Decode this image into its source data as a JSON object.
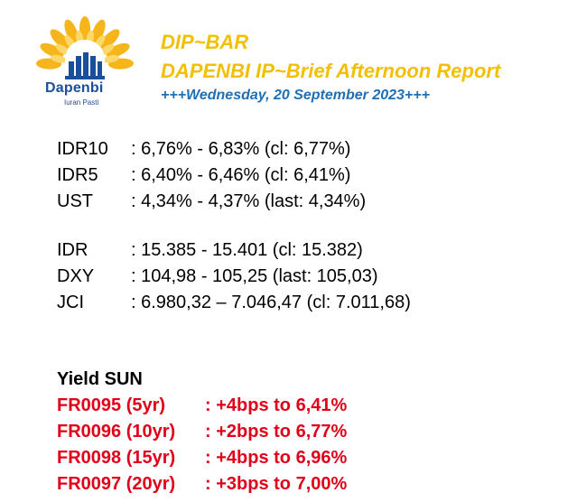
{
  "header": {
    "logo": {
      "brand": "Dapenbi",
      "tagline": "Iuran Pasti",
      "icon": "sunburst-building-logo"
    },
    "title_line1": "DIP~BAR",
    "title_line2": "DAPENBI IP~Brief Afternoon Report",
    "date_line": "+++Wednesday, 20 September 2023+++"
  },
  "rates": [
    {
      "label": "IDR10",
      "value": ": 6,76% - 6,83% (cl: 6,77%)"
    },
    {
      "label": "IDR5",
      "value": ": 6,40% - 6,46% (cl: 6,41%)"
    },
    {
      "label": "UST",
      "value": ": 4,34% - 4,37% (last: 4,34%)"
    }
  ],
  "markets": [
    {
      "label": "IDR",
      "value": ": 15.385 - 15.401 (cl: 15.382)"
    },
    {
      "label": "DXY",
      "value": ": 104,98 - 105,25 (last: 105,03)"
    },
    {
      "label": "JCI",
      "value": ": 6.980,32 – 7.046,47 (cl: 7.011,68)"
    }
  ],
  "yield_sun": {
    "title": "Yield SUN",
    "items": [
      {
        "series": "FR0095 (5yr)",
        "change": ": +4bps to 6,41%"
      },
      {
        "series": "FR0096 (10yr)",
        "change": ": +2bps to 6,77%"
      },
      {
        "series": "FR0098 (15yr)",
        "change": ": +4bps to 6,96%"
      },
      {
        "series": "FR0097 (20yr)",
        "change": ": +3bps to 7,00%"
      }
    ]
  },
  "colors": {
    "title": "#f2c000",
    "date": "#1f6fb5",
    "brand": "#1a4f9c",
    "yield_items": "#e0001a",
    "sun_rays": "#f5b51b"
  }
}
